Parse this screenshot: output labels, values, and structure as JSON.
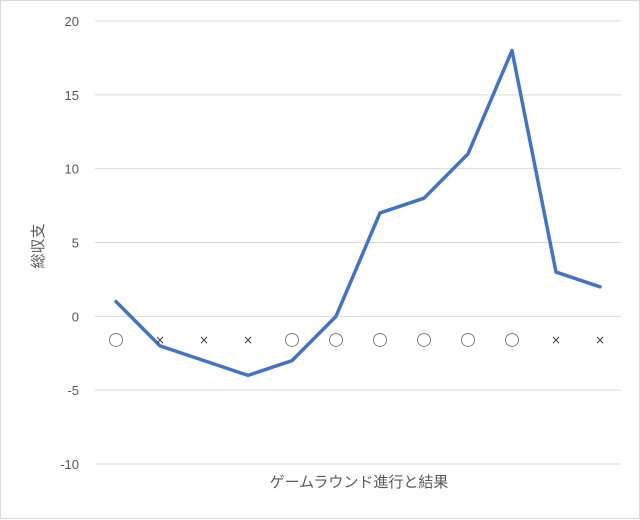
{
  "chart_data": {
    "type": "line",
    "title": "",
    "xlabel": "ゲームラウンド進行と結果",
    "ylabel": "総収支",
    "ylim": [
      -10,
      20
    ],
    "yticks": [
      -10,
      -5,
      0,
      5,
      10,
      15,
      20
    ],
    "grid": true,
    "legend": "none",
    "series": [
      {
        "values": [
          1,
          -2,
          -3,
          -4,
          -3,
          0,
          7,
          8,
          11,
          18,
          3,
          2
        ],
        "color": "#4472C4"
      }
    ],
    "round_results": [
      "○",
      "×",
      "×",
      "×",
      "○",
      "○",
      "○",
      "○",
      "○",
      "○",
      "×",
      "×"
    ],
    "round_result_y": -1.6
  },
  "colors": {
    "line": "#4472C4",
    "grid": "#d9d9d9",
    "text": "#595959"
  }
}
